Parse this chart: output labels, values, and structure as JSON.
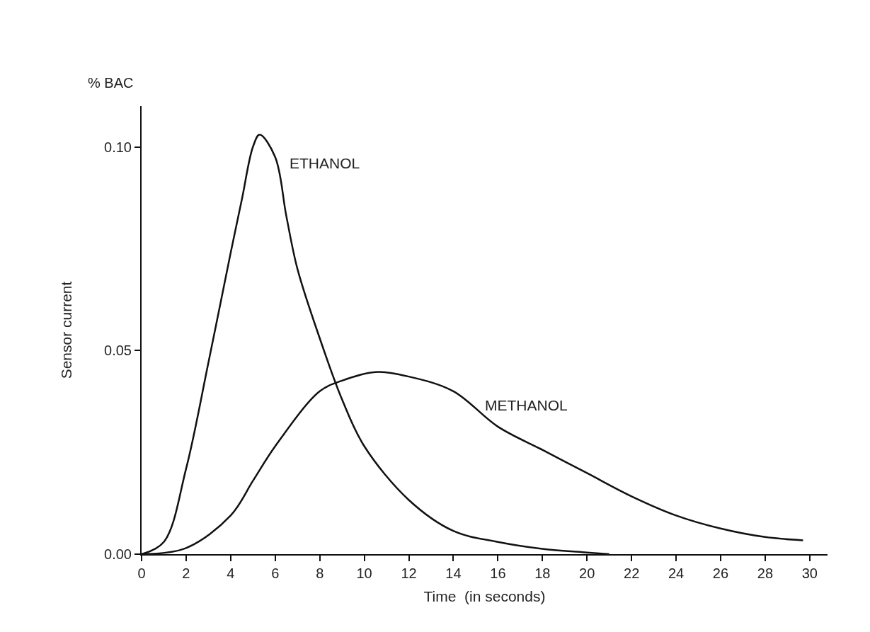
{
  "chart_data": {
    "type": "line",
    "xlabel": "Time  (in seconds)",
    "ylabel": "Sensor current",
    "annotations": [
      "% BAC"
    ],
    "xlim": [
      0,
      30.8
    ],
    "ylim": [
      0,
      0.11
    ],
    "xticks": [
      0,
      2,
      4,
      6,
      8,
      10,
      12,
      14,
      16,
      18,
      20,
      22,
      24,
      26,
      28,
      30
    ],
    "yticks": [
      {
        "value": 0,
        "label": "0.00"
      },
      {
        "value": 0.05,
        "label": "0.05"
      },
      {
        "value": 0.1,
        "label": "0.10"
      }
    ],
    "legend": false,
    "marker": "none",
    "line_style": "solid",
    "series": [
      {
        "name": "ETHANOL",
        "color": "#111111",
        "x": [
          0,
          1,
          2,
          3,
          4,
          4.5,
          5,
          5.3,
          6,
          6.5,
          7,
          8,
          9,
          10,
          12,
          14,
          16,
          18,
          20,
          21
        ],
        "values": [
          0,
          0.003,
          0.021,
          0.047,
          0.074,
          0.087,
          0.1,
          0.103,
          0.0975,
          0.083,
          0.07,
          0.053,
          0.038,
          0.0265,
          0.0133,
          0.0057,
          0.003,
          0.0013,
          0.0004,
          0
        ]
      },
      {
        "name": "METHANOL",
        "color": "#111111",
        "x": [
          0,
          2,
          4,
          5,
          6,
          8,
          9,
          10.5,
          12,
          14,
          16,
          18,
          20,
          22,
          24,
          26,
          28,
          29.7
        ],
        "values": [
          0,
          0.0015,
          0.0095,
          0.018,
          0.0265,
          0.04,
          0.0426,
          0.0447,
          0.0436,
          0.04,
          0.0313,
          0.0256,
          0.0199,
          0.0142,
          0.0095,
          0.0063,
          0.0042,
          0.0034
        ]
      }
    ]
  }
}
